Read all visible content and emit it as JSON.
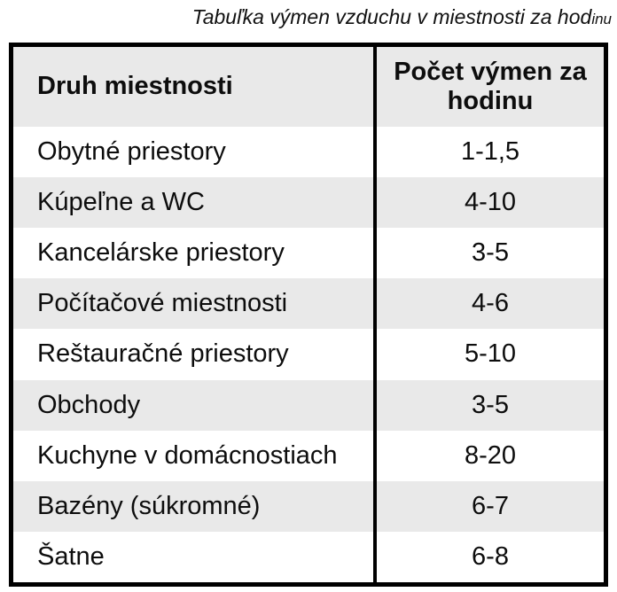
{
  "title": {
    "main": "Tabuľka výmen vzduchu v miestnosti za hod",
    "suffix": "inu"
  },
  "colors": {
    "border": "#000000",
    "stripe": "#e9e9e9",
    "text": "#0d0d0d"
  },
  "table": {
    "headers": {
      "room": "Druh miestnosti",
      "value": "Počet výmen za hodinu"
    },
    "rows": [
      {
        "room": "Obytné priestory",
        "value": "1-1,5"
      },
      {
        "room": "Kúpeľne a WC",
        "value": "4-10"
      },
      {
        "room": "Kancelárske priestory",
        "value": "3-5"
      },
      {
        "room": "Počítačové miestnosti",
        "value": "4-6"
      },
      {
        "room": "Reštauračné priestory",
        "value": "5-10"
      },
      {
        "room": "Obchody",
        "value": "3-5"
      },
      {
        "room": "Kuchyne v domácnostiach",
        "value": "8-20"
      },
      {
        "room": "Bazény (súkromné)",
        "value": "6-7"
      },
      {
        "room": "Šatne",
        "value": "6-8"
      }
    ]
  }
}
